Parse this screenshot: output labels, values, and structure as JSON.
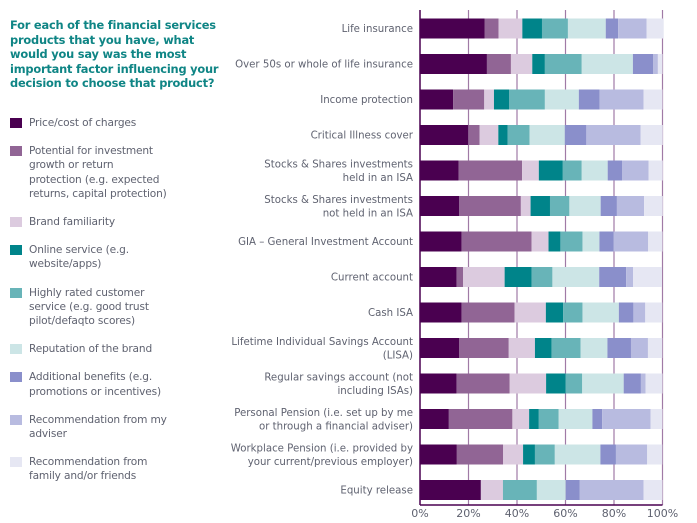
{
  "title": "For each of the financial services products that you have, what would you say was the most important factor influencing your decision to choose that product?",
  "chart_data": {
    "type": "bar",
    "orientation": "horizontal",
    "stacked": true,
    "title": "For each of the financial services products that you have, what would you say was the most important factor influencing your decision to choose that product?",
    "xlabel": "",
    "ylabel": "",
    "xlim": [
      0,
      100
    ],
    "x_ticks": [
      "0%",
      "20%",
      "40%",
      "60%",
      "80%",
      "100%"
    ],
    "grid": true,
    "legend_position": "left",
    "categories": [
      "Life insurance",
      "Over 50s or whole of life insurance",
      "Income protection",
      "Critical Illness cover",
      "Stocks & Shares investments held in an ISA",
      "Stocks & Shares investments not held in an ISA",
      "GIA – General Investment Account",
      "Current account",
      "Cash ISA",
      "Lifetime Individual Savings Account (LISA)",
      "Regular savings account (not including ISAs)",
      "Personal Pension (i.e. set up by me or through a financial adviser)",
      "Workplace Pension (i.e. provided by your current/previous employer)",
      "Equity release"
    ],
    "category_label_lines": [
      [
        "Life insurance"
      ],
      [
        "Over 50s or whole of life insurance"
      ],
      [
        "Income protection"
      ],
      [
        "Critical Illness cover"
      ],
      [
        "Stocks & Shares investments",
        "held in an ISA"
      ],
      [
        "Stocks & Shares investments",
        "not held in an ISA"
      ],
      [
        "GIA – General Investment Account"
      ],
      [
        "Current account"
      ],
      [
        "Cash ISA"
      ],
      [
        "Lifetime Individual Savings Account",
        "(LISA)"
      ],
      [
        "Regular savings account (not",
        "including ISAs)"
      ],
      [
        "Personal Pension (i.e. set up by me",
        "or through a financial adviser)"
      ],
      [
        "Workplace Pension (i.e. provided by",
        "your current/previous employer)"
      ],
      [
        "Equity release"
      ]
    ],
    "series": [
      {
        "name": "Price/cost of charges",
        "color": "#4a0050",
        "values": [
          26.6,
          27.6,
          13.7,
          19.9,
          15.9,
          16.2,
          17.1,
          15.1,
          17.1,
          16.2,
          15.1,
          11.9,
          15.2,
          25.1
        ]
      },
      {
        "name": "Potential for investment growth or return protection (e.g. expected returns, capital protection)",
        "color": "#916595",
        "values": [
          5.8,
          9.9,
          12.8,
          4.7,
          26.2,
          25.4,
          28.9,
          2.7,
          21.9,
          20.4,
          21.9,
          26.2,
          19.1,
          0
        ]
      },
      {
        "name": "Brand familiarity",
        "color": "#dccbdf",
        "values": [
          9.8,
          8.8,
          4.0,
          7.7,
          6.9,
          4.0,
          7.0,
          17.1,
          12.9,
          10.8,
          15.0,
          6.9,
          8.2,
          9.1
        ]
      },
      {
        "name": "Online service (e.g. website/apps)",
        "color": "#00848a",
        "values": [
          8.1,
          5.2,
          6.2,
          3.8,
          9.9,
          8.0,
          4.9,
          11.1,
          7.1,
          6.9,
          8.0,
          4.0,
          4.9,
          0
        ]
      },
      {
        "name": "Highly rated customer service (e.g. good trust pilot/defaqto scores)",
        "color": "#68b4b8",
        "values": [
          10.7,
          15.2,
          14.8,
          9.1,
          7.8,
          8.0,
          9.1,
          8.6,
          8.0,
          11.9,
          6.9,
          8.2,
          8.2,
          14.0
        ]
      },
      {
        "name": "Reputation of the brand",
        "color": "#cce5e6",
        "values": [
          15.6,
          21.1,
          14.0,
          14.5,
          10.7,
          12.9,
          7.0,
          19.3,
          15.0,
          11.1,
          17.1,
          13.9,
          18.8,
          11.9
        ]
      },
      {
        "name": "Additional benefits (e.g. promotions or incentives)",
        "color": "#8a8fcb",
        "values": [
          5.1,
          8.4,
          8.6,
          8.9,
          5.9,
          6.7,
          5.8,
          11.1,
          6.0,
          9.7,
          7.1,
          4.0,
          6.4,
          5.8
        ]
      },
      {
        "name": "Recommendation from my adviser",
        "color": "#b8bbe0",
        "values": [
          11.7,
          1.9,
          18.1,
          22.4,
          11.0,
          11.2,
          14.3,
          2.9,
          4.9,
          7.0,
          1.9,
          20.0,
          12.9,
          26.3
        ]
      },
      {
        "name": "Recommendation from family and/or friends",
        "color": "#e6e7f3",
        "values": [
          7.1,
          1.9,
          7.8,
          9.1,
          5.8,
          7.7,
          5.9,
          11.9,
          7.0,
          5.9,
          7.0,
          4.9,
          6.2,
          7.8
        ]
      }
    ]
  },
  "legend": [
    {
      "lines": [
        "Price/cost of charges"
      ]
    },
    {
      "lines": [
        "Potential for investment",
        "growth or return",
        "protection (e.g. expected",
        "returns, capital protection)"
      ]
    },
    {
      "lines": [
        "Brand familiarity"
      ]
    },
    {
      "lines": [
        "Online service (e.g.",
        "website/apps)"
      ]
    },
    {
      "lines": [
        "Highly rated customer",
        "service (e.g. good trust",
        "pilot/defaqto scores)"
      ]
    },
    {
      "lines": [
        "Reputation of the brand"
      ]
    },
    {
      "lines": [
        "Additional benefits (e.g.",
        "promotions or incentives)"
      ]
    },
    {
      "lines": [
        "Recommendation from my",
        "adviser"
      ]
    },
    {
      "lines": [
        "Recommendation from",
        "family and/or friends"
      ]
    }
  ],
  "colors": {
    "title": "#0f8585",
    "text": "#5f6270",
    "gridline": "#a07aa6",
    "axis": "#4a0050"
  }
}
